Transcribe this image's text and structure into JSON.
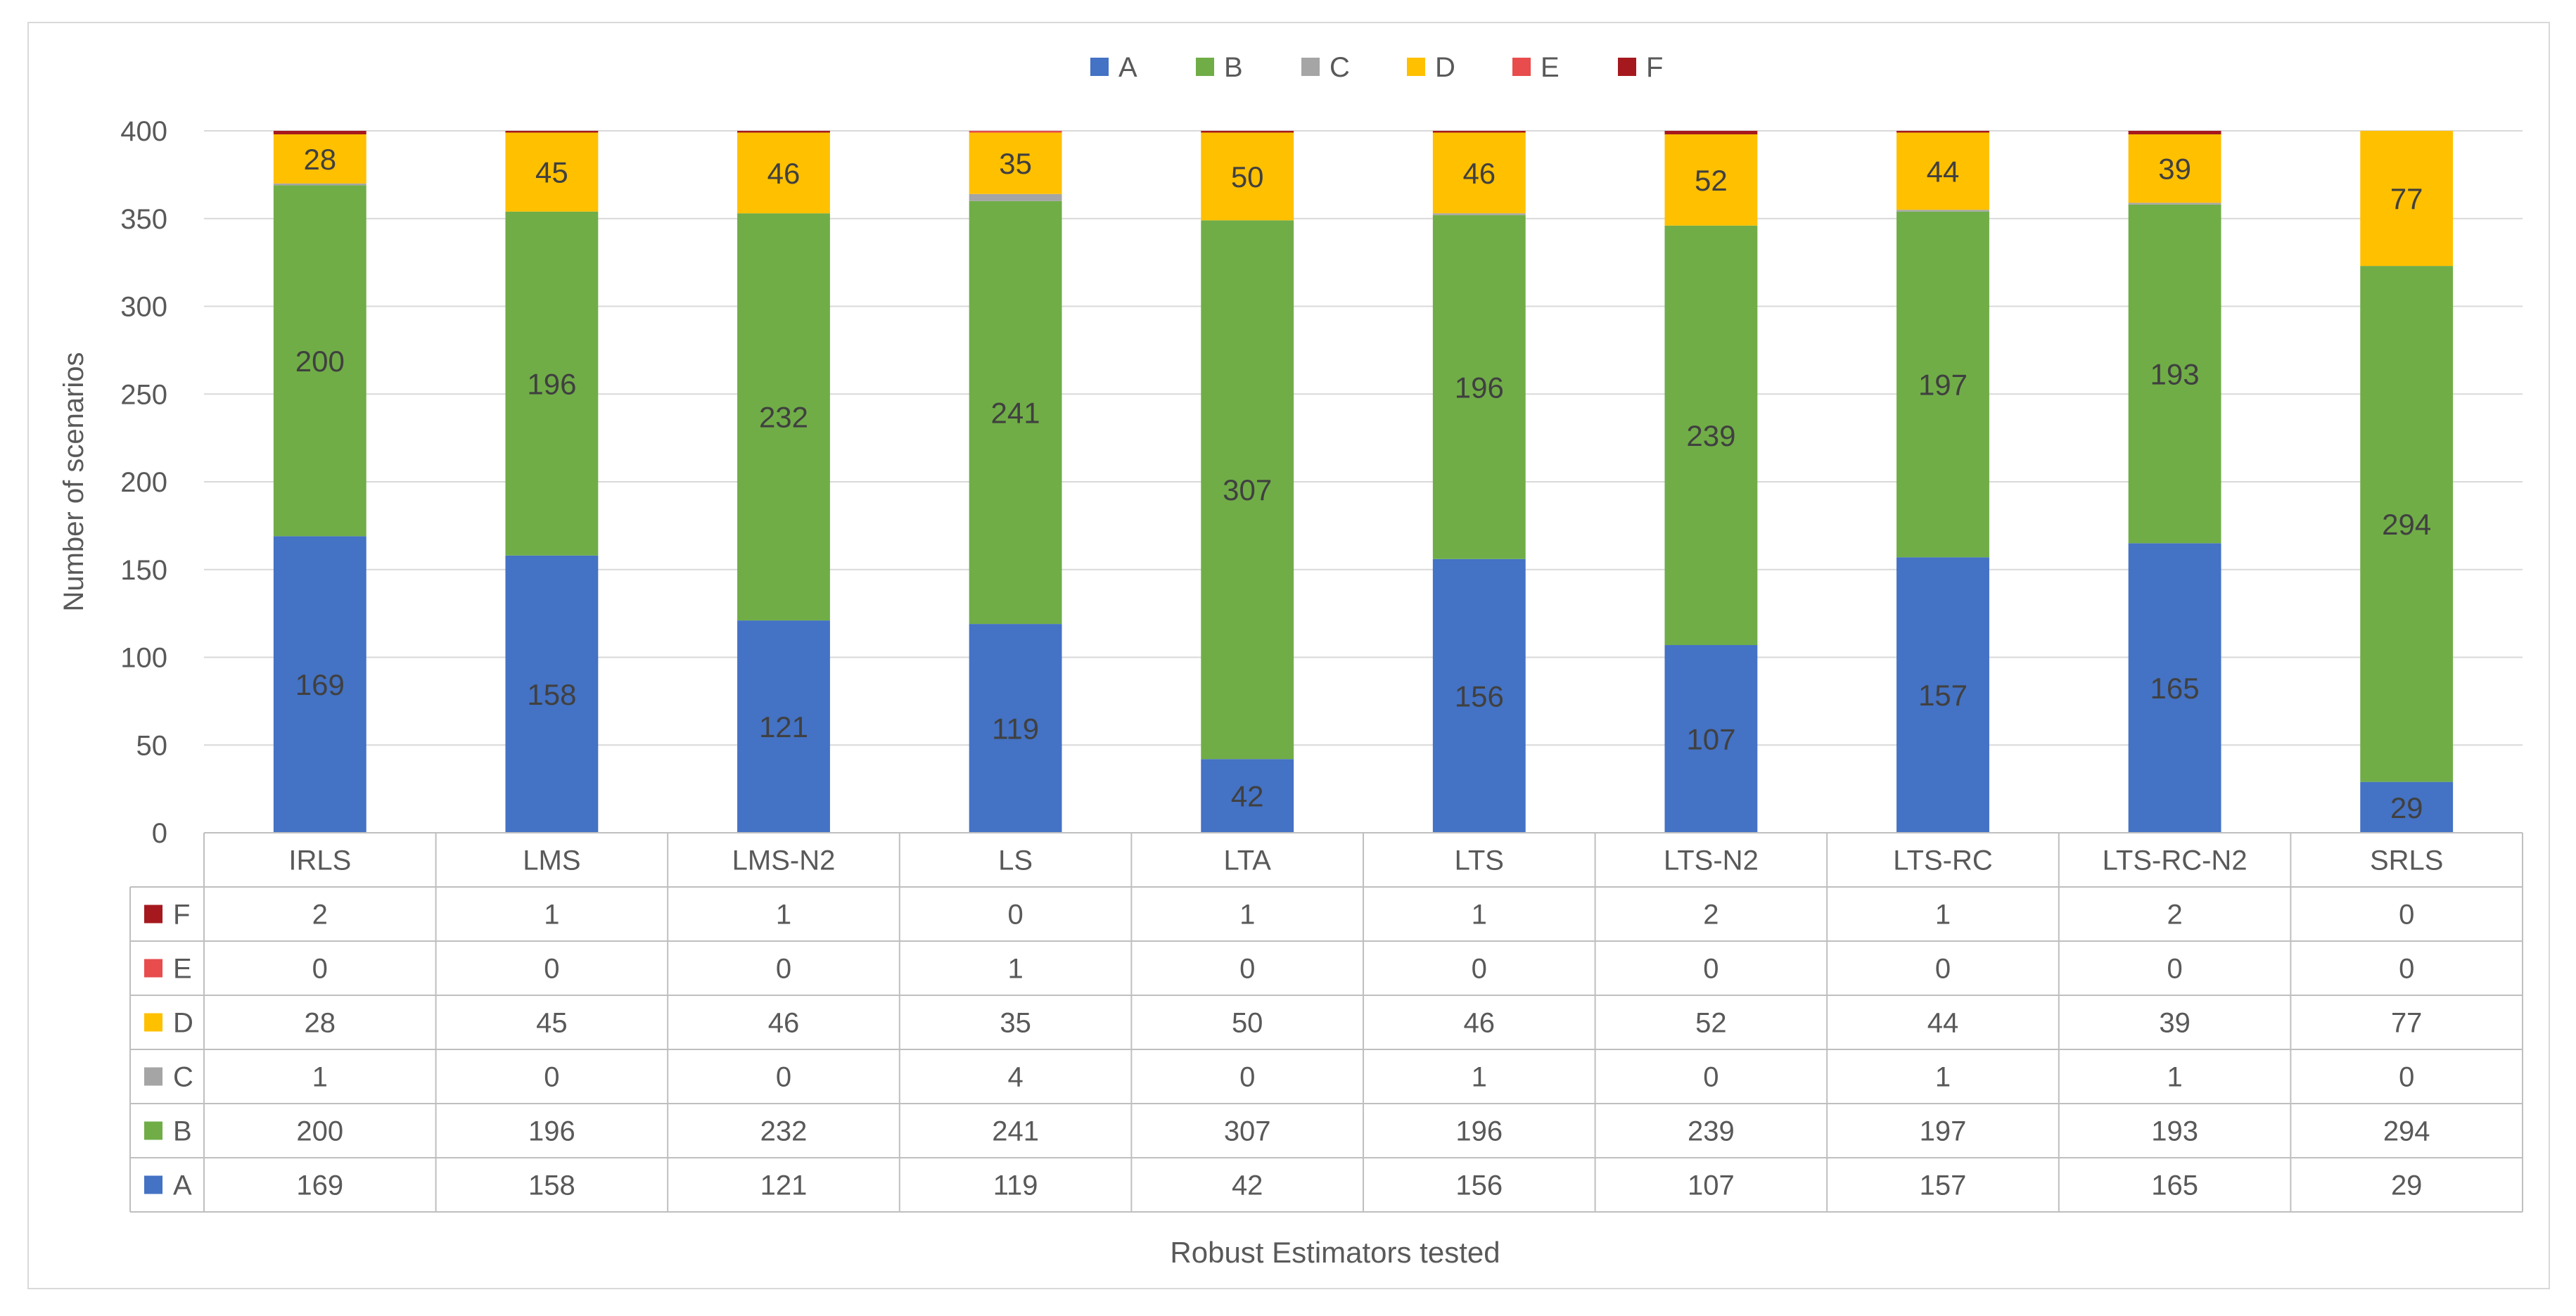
{
  "chart_data": {
    "type": "bar",
    "stacked": true,
    "title": "",
    "xlabel": "Robust Estimators tested",
    "ylabel": "Number of scenarios",
    "ylim": [
      0,
      400
    ],
    "yticks": [
      0,
      50,
      100,
      150,
      200,
      250,
      300,
      350,
      400
    ],
    "grid": true,
    "legend_position": "top",
    "data_table": true,
    "categories": [
      "IRLS",
      "LMS",
      "LMS-N2",
      "LS",
      "LTA",
      "LTS",
      "LTS-N2",
      "LTS-RC",
      "LTS-RC-N2",
      "SRLS"
    ],
    "series": [
      {
        "name": "A",
        "color": "#4472C4",
        "values": [
          169,
          158,
          121,
          119,
          42,
          156,
          107,
          157,
          165,
          29
        ]
      },
      {
        "name": "B",
        "color": "#70AD47",
        "values": [
          200,
          196,
          232,
          241,
          307,
          196,
          239,
          197,
          193,
          294
        ]
      },
      {
        "name": "C",
        "color": "#A5A5A5",
        "values": [
          1,
          0,
          0,
          4,
          0,
          1,
          0,
          1,
          1,
          0
        ]
      },
      {
        "name": "D",
        "color": "#FFC000",
        "values": [
          28,
          45,
          46,
          35,
          50,
          46,
          52,
          44,
          39,
          77
        ]
      },
      {
        "name": "E",
        "color": "#E84C4C",
        "values": [
          0,
          0,
          0,
          1,
          0,
          0,
          0,
          0,
          0,
          0
        ]
      },
      {
        "name": "F",
        "color": "#A5191E",
        "values": [
          2,
          1,
          1,
          0,
          1,
          1,
          2,
          1,
          2,
          0
        ]
      }
    ],
    "bar_labels_series": [
      "A",
      "B",
      "D"
    ],
    "table_row_order": [
      "F",
      "E",
      "D",
      "C",
      "B",
      "A"
    ]
  }
}
